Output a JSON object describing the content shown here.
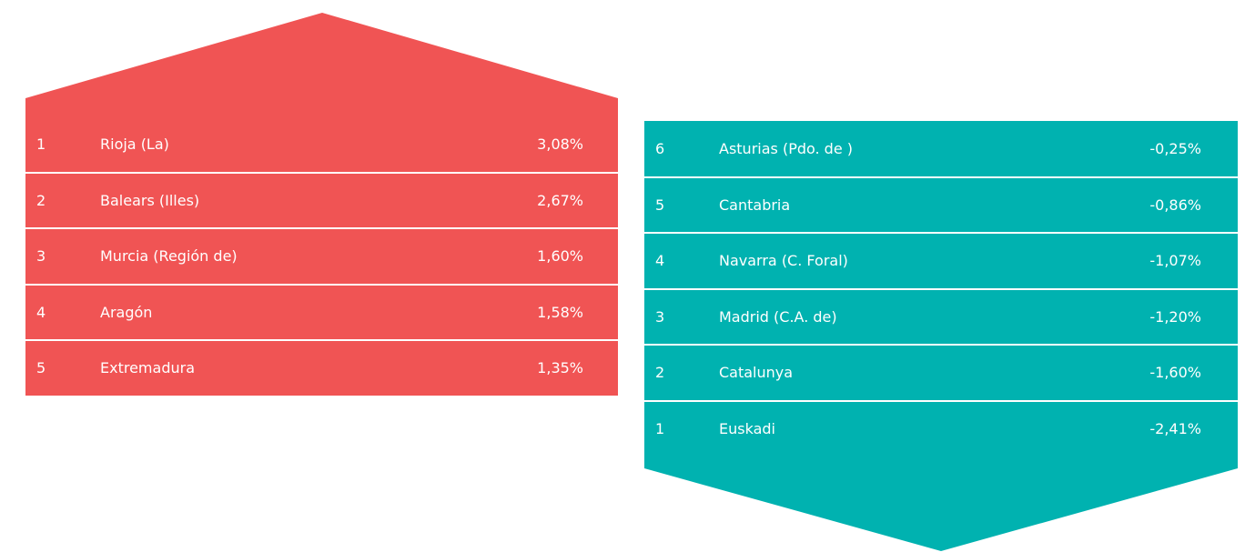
{
  "up": {
    "rows": [
      {
        "rank": "1",
        "name": "Rioja (La)",
        "value": "3,08%"
      },
      {
        "rank": "2",
        "name": "Balears (Illes)",
        "value": "2,67%"
      },
      {
        "rank": "3",
        "name": "Murcia (Región de)",
        "value": "1,60%"
      },
      {
        "rank": "4",
        "name": "Aragón",
        "value": "1,58%"
      },
      {
        "rank": "5",
        "name": "Extremadura",
        "value": "1,35%"
      }
    ]
  },
  "down": {
    "rows": [
      {
        "rank": "6",
        "name": "Asturias (Pdo. de )",
        "value": "-0,25%"
      },
      {
        "rank": "5",
        "name": "Cantabria",
        "value": "-0,86%"
      },
      {
        "rank": "4",
        "name": "Navarra (C. Foral)",
        "value": "-1,07%"
      },
      {
        "rank": "3",
        "name": "Madrid (C.A. de)",
        "value": "-1,20%"
      },
      {
        "rank": "2",
        "name": "Catalunya",
        "value": "-1,60%"
      },
      {
        "rank": "1",
        "name": "Euskadi",
        "value": "-2,41%"
      }
    ]
  }
}
